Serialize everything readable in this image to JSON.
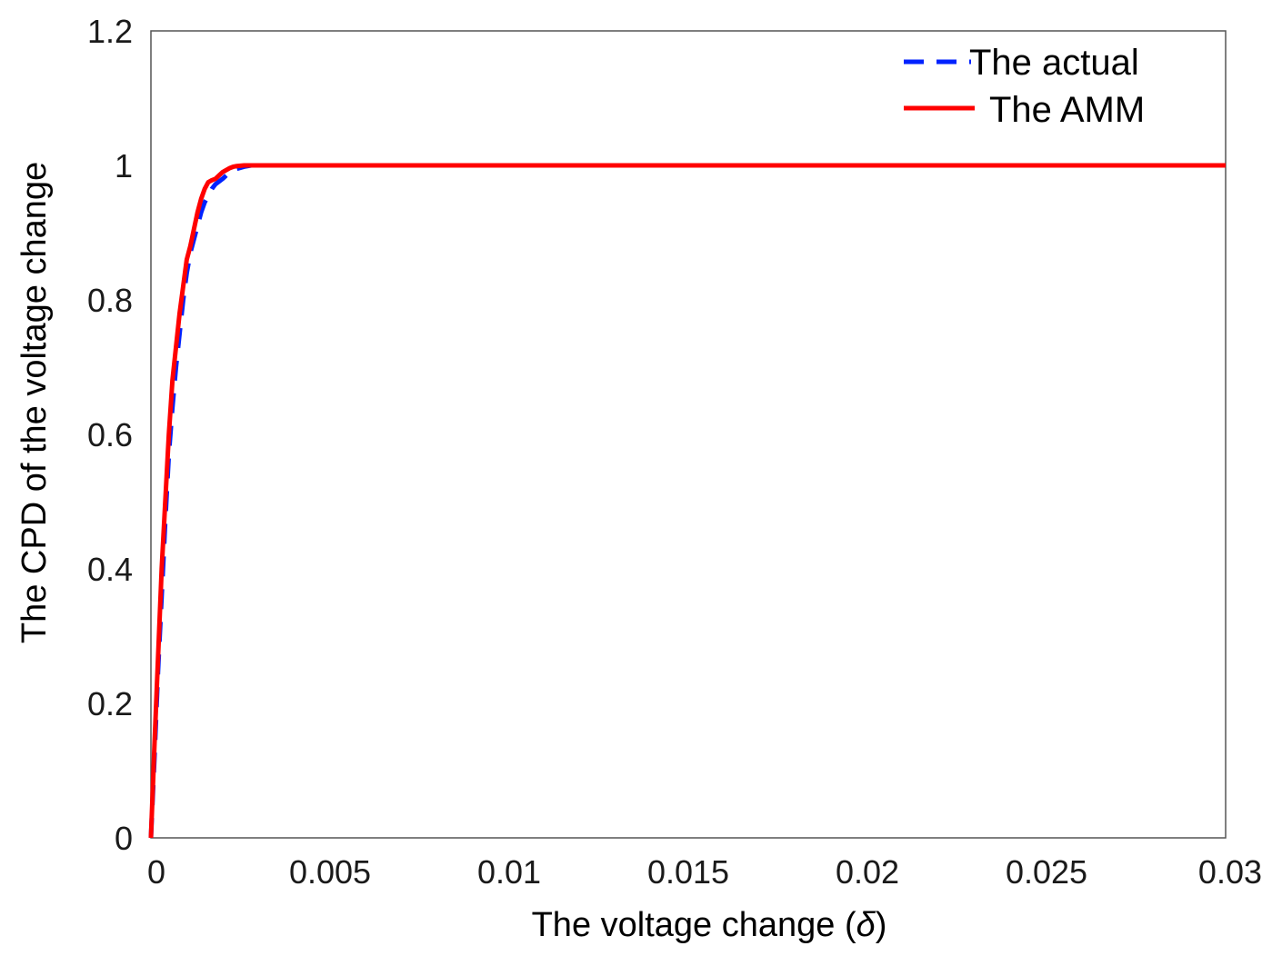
{
  "chart_data": {
    "type": "line",
    "title": "",
    "xlabel": "The voltage change (",
    "xlabel_symbol": "δ",
    "xlabel_suffix": ")",
    "ylabel": "The CPD of the voltage change",
    "xlim": [
      0,
      0.03
    ],
    "ylim": [
      0,
      1.2
    ],
    "x_ticks": [
      0,
      0.005,
      0.01,
      0.015,
      0.02,
      0.025,
      0.03
    ],
    "x_tick_labels": [
      "0",
      "0.005",
      "0.01",
      "0.015",
      "0.02",
      "0.025",
      "0.03"
    ],
    "y_ticks": [
      0,
      0.2,
      0.4,
      0.6,
      0.8,
      1,
      1.2
    ],
    "y_tick_labels": [
      "0",
      "0.2",
      "0.4",
      "0.6",
      "0.8",
      "1",
      "1.2"
    ],
    "grid": false,
    "legend_position": "top-right",
    "series": [
      {
        "name": "The actual",
        "color": "#0022ff",
        "style": "dashed",
        "x": [
          0,
          0.0001,
          0.0002,
          0.0003,
          0.0004,
          0.0005,
          0.0006,
          0.0007,
          0.0008,
          0.0009,
          0.001,
          0.0011,
          0.0012,
          0.0013,
          0.0014,
          0.0015,
          0.0016,
          0.0017,
          0.0018,
          0.002,
          0.0022,
          0.0024,
          0.0026,
          0.0028,
          0.003,
          0.005,
          0.01,
          0.015,
          0.02,
          0.025,
          0.03
        ],
        "y": [
          0,
          0.12,
          0.25,
          0.36,
          0.47,
          0.57,
          0.64,
          0.7,
          0.75,
          0.8,
          0.84,
          0.87,
          0.89,
          0.91,
          0.93,
          0.945,
          0.955,
          0.965,
          0.972,
          0.98,
          0.99,
          0.995,
          0.998,
          1,
          1,
          1,
          1,
          1,
          1,
          1,
          1
        ]
      },
      {
        "name": "The AMM",
        "color": "#ff0000",
        "style": "solid",
        "x": [
          0,
          0.0001,
          0.0002,
          0.0003,
          0.0004,
          0.0005,
          0.0006,
          0.0007,
          0.0008,
          0.0009,
          0.001,
          0.0011,
          0.0012,
          0.0013,
          0.0014,
          0.0015,
          0.0016,
          0.0017,
          0.0018,
          0.0019,
          0.002,
          0.0021,
          0.0022,
          0.0023,
          0.0024,
          0.0026,
          0.003,
          0.005,
          0.01,
          0.015,
          0.02,
          0.025,
          0.03
        ],
        "y": [
          0,
          0.14,
          0.27,
          0.4,
          0.5,
          0.6,
          0.68,
          0.73,
          0.78,
          0.82,
          0.86,
          0.88,
          0.905,
          0.93,
          0.95,
          0.965,
          0.975,
          0.978,
          0.98,
          0.985,
          0.99,
          0.993,
          0.996,
          0.998,
          0.999,
          1,
          1,
          1,
          1,
          1,
          1,
          1,
          1
        ]
      }
    ]
  }
}
